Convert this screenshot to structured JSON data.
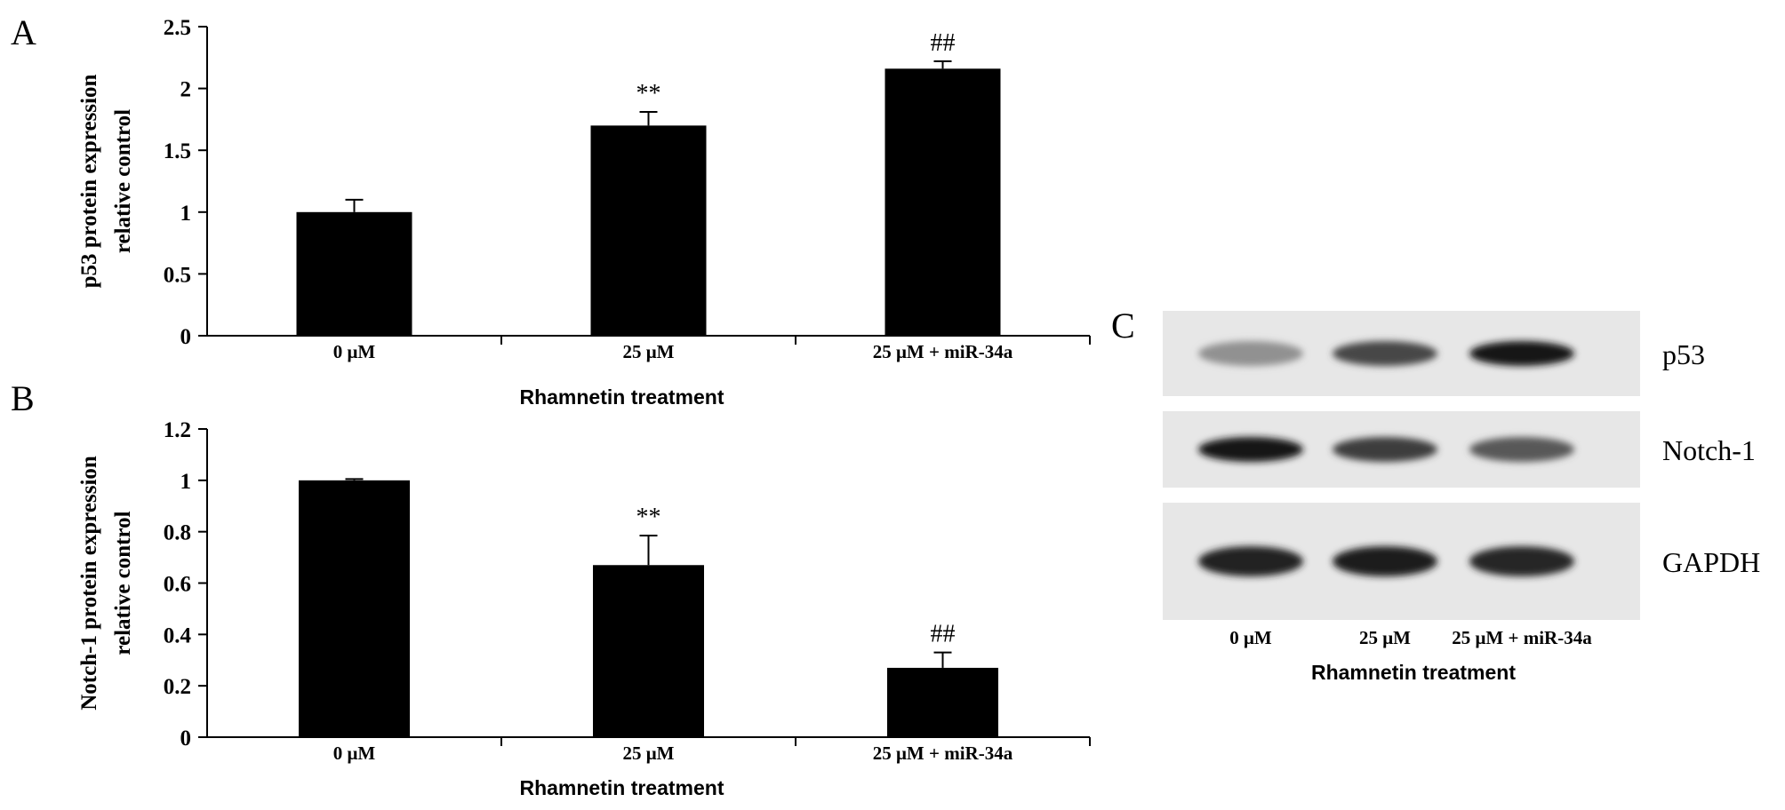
{
  "panels": {
    "A": {
      "letter": "A"
    },
    "B": {
      "letter": "B"
    },
    "C": {
      "letter": "C"
    }
  },
  "chart_data": [
    {
      "type": "bar",
      "panel": "A",
      "categories": [
        "0 μM",
        "25 μM",
        "25 μM + miR-34a"
      ],
      "values": [
        1.0,
        1.7,
        2.16
      ],
      "errors": [
        0.1,
        0.11,
        0.06
      ],
      "annotations": [
        "",
        "**",
        "##"
      ],
      "xlabel": "Rhamnetin treatment",
      "ylabel_lines": [
        "p53 protein expression",
        "relative control"
      ],
      "ylim": [
        0,
        2.5
      ],
      "yticks": [
        0,
        0.5,
        1,
        1.5,
        2,
        2.5
      ],
      "ytick_labels": [
        "0",
        "0.5",
        "1",
        "1.5",
        "2",
        "2.5"
      ],
      "grid": false,
      "bar_color": "#000000"
    },
    {
      "type": "bar",
      "panel": "B",
      "categories": [
        "0 μM",
        "25 μM",
        "25 μM + miR-34a"
      ],
      "values": [
        1.0,
        0.67,
        0.27
      ],
      "errors": [
        0.005,
        0.115,
        0.06
      ],
      "annotations": [
        "",
        "**",
        "##"
      ],
      "xlabel": "Rhamnetin treatment",
      "ylabel_lines": [
        "Notch-1 protein expression",
        "relative control"
      ],
      "ylim": [
        0,
        1.2
      ],
      "yticks": [
        0,
        0.2,
        0.4,
        0.6,
        0.8,
        1.0,
        1.2
      ],
      "ytick_labels": [
        "0",
        "0.2",
        "0.4",
        "0.6",
        "0.8",
        "1",
        "1.2"
      ],
      "grid": false,
      "bar_color": "#000000"
    }
  ],
  "blot": {
    "rows": [
      {
        "label": "p53",
        "intensities": [
          0.3,
          0.7,
          0.95
        ]
      },
      {
        "label": "Notch-1",
        "intensities": [
          0.95,
          0.75,
          0.6
        ]
      },
      {
        "label": "GAPDH",
        "intensities": [
          0.9,
          0.92,
          0.88
        ]
      }
    ],
    "lanes": [
      "0 μM",
      "25 μM",
      "25 μM + miR-34a"
    ],
    "xlabel": "Rhamnetin treatment"
  }
}
